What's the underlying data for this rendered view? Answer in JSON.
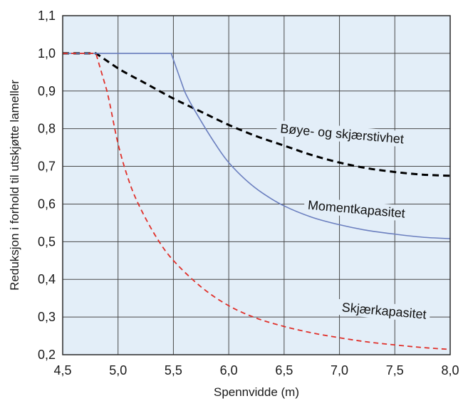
{
  "chart_data": {
    "type": "line",
    "xlabel": "Spennvidde (m)",
    "ylabel": "Reduksjon i forhold til utskjøtte lameller",
    "xlim": [
      4.5,
      8.0
    ],
    "ylim": [
      0.2,
      1.1
    ],
    "x_ticks": [
      "4,5",
      "5,0",
      "5,5",
      "6,0",
      "6,5",
      "7,0",
      "7,5",
      "8,0"
    ],
    "y_ticks": [
      "0,2",
      "0,3",
      "0,4",
      "0,5",
      "0,6",
      "0,7",
      "0,8",
      "0,9",
      "1,0",
      "1,1"
    ],
    "grid": true,
    "plot_background": "#e3eef8",
    "series": [
      {
        "name": "Bøye- og skjærstivhet",
        "color": "#000000",
        "dash": "dashed",
        "x": [
          4.5,
          4.8,
          5.0,
          5.25,
          5.5,
          5.75,
          6.0,
          6.25,
          6.5,
          6.75,
          7.0,
          7.25,
          7.5,
          7.75,
          8.0
        ],
        "y": [
          1.0,
          1.0,
          0.96,
          0.92,
          0.88,
          0.845,
          0.81,
          0.78,
          0.755,
          0.73,
          0.71,
          0.695,
          0.685,
          0.678,
          0.675
        ]
      },
      {
        "name": "Momentkapasitet",
        "color": "#6b7fbf",
        "dash": "solid",
        "x": [
          4.5,
          4.8,
          5.48,
          5.6,
          5.75,
          5.9,
          6.0,
          6.15,
          6.3,
          6.5,
          6.75,
          7.0,
          7.25,
          7.5,
          7.75,
          8.0
        ],
        "y": [
          1.0,
          1.0,
          1.0,
          0.9,
          0.82,
          0.75,
          0.71,
          0.665,
          0.63,
          0.595,
          0.565,
          0.545,
          0.53,
          0.52,
          0.512,
          0.508
        ]
      },
      {
        "name": "Skjærkapasitet",
        "color": "#e0302a",
        "dash": "dashed",
        "x": [
          4.5,
          4.8,
          4.9,
          5.0,
          5.1,
          5.2,
          5.35,
          5.5,
          5.75,
          6.0,
          6.25,
          6.5,
          6.75,
          7.0,
          7.25,
          7.5,
          7.75,
          8.0
        ],
        "y": [
          1.0,
          1.0,
          0.9,
          0.76,
          0.66,
          0.59,
          0.51,
          0.45,
          0.38,
          0.33,
          0.297,
          0.275,
          0.258,
          0.245,
          0.234,
          0.226,
          0.219,
          0.214
        ]
      }
    ],
    "annotations": [
      {
        "text": "Bøye- og skjærstivhet",
        "x": 7.02,
        "y": 0.775,
        "rotate": 5
      },
      {
        "text": "Momentkapasitet",
        "x": 7.15,
        "y": 0.575,
        "rotate": 5
      },
      {
        "text": "Skjærkapasitet",
        "x": 7.4,
        "y": 0.305,
        "rotate": 5
      }
    ]
  }
}
